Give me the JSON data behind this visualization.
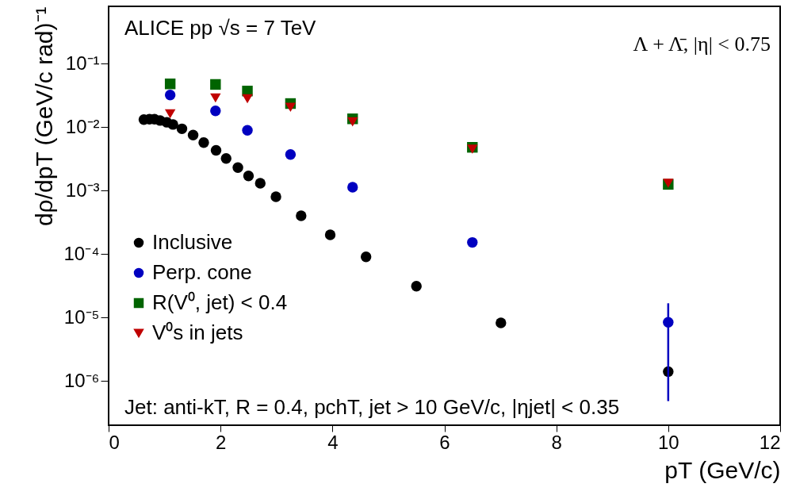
{
  "chart_data": {
    "type": "scatter",
    "xlabel": "pT (GeV/c)",
    "ylabel": "dρ/dpT (GeV/c rad)⁻¹",
    "annotations": [
      "ALICE pp √s = 7 TeV",
      "Λ + Λ̄, |η| < 0.75",
      "Jet: anti-kT, R = 0.4, pchT, jet > 10 GeV/c, |ηjet| < 0.35"
    ],
    "log": "y",
    "xlim": [
      0,
      12
    ],
    "xticks": [
      0,
      2,
      4,
      6,
      8,
      10,
      12
    ],
    "ylim": [
      2e-07,
      0.8
    ],
    "yticks": [
      {
        "value": 1e-06,
        "label": "10⁻⁶"
      },
      {
        "value": 1e-05,
        "label": "10⁻⁵"
      },
      {
        "value": 0.0001,
        "label": "10⁻⁴"
      },
      {
        "value": 0.001,
        "label": "10⁻³"
      },
      {
        "value": 0.01,
        "label": "10⁻²"
      },
      {
        "value": 0.1,
        "label": "10⁻¹"
      }
    ],
    "legend": "bottom left",
    "grid": false,
    "series": [
      {
        "name": "Inclusive",
        "color": "#000000",
        "marker": "circle",
        "x": [
          0.63,
          0.73,
          0.82,
          0.92,
          1.04,
          1.15,
          1.31,
          1.51,
          1.7,
          1.92,
          2.1,
          2.31,
          2.5,
          2.71,
          2.99,
          3.44,
          3.96,
          4.6,
          5.5,
          7.01,
          10.0
        ],
        "values": [
          0.0131,
          0.0133,
          0.0133,
          0.0127,
          0.0119,
          0.011,
          0.0094,
          0.0075,
          0.0057,
          0.0043,
          0.0032,
          0.0023,
          0.0017,
          0.0013,
          0.0008,
          0.0004,
          0.0002,
          9e-05,
          3.1e-05,
          8.2e-06,
          1.4e-06
        ]
      },
      {
        "name": "Perp. cone",
        "color": "#0000c0",
        "marker": "circle",
        "x": [
          1.1,
          1.91,
          2.48,
          3.25,
          4.36,
          6.5,
          10.0
        ],
        "values": [
          0.032,
          0.018,
          0.0089,
          0.0037,
          0.00113,
          0.000152,
          8.4e-06
        ],
        "errors": [
          null,
          null,
          null,
          null,
          null,
          null,
          [
            4.8e-07,
            1.67e-05
          ]
        ]
      },
      {
        "name": "R(V⁰, jet) < 0.4",
        "color": "#006400",
        "marker": "square",
        "x": [
          1.1,
          1.91,
          2.48,
          3.25,
          4.36,
          6.5,
          10.0
        ],
        "values": [
          0.048,
          0.047,
          0.037,
          0.0235,
          0.0135,
          0.0048,
          0.00125
        ]
      },
      {
        "name": "V⁰s in jets",
        "color": "#c00000",
        "marker": "triangle",
        "x": [
          1.1,
          1.91,
          2.48,
          3.25,
          4.36,
          6.5,
          10.0
        ],
        "values": [
          0.0162,
          0.0288,
          0.028,
          0.0205,
          0.0121,
          0.0045,
          0.0013
        ]
      }
    ]
  }
}
